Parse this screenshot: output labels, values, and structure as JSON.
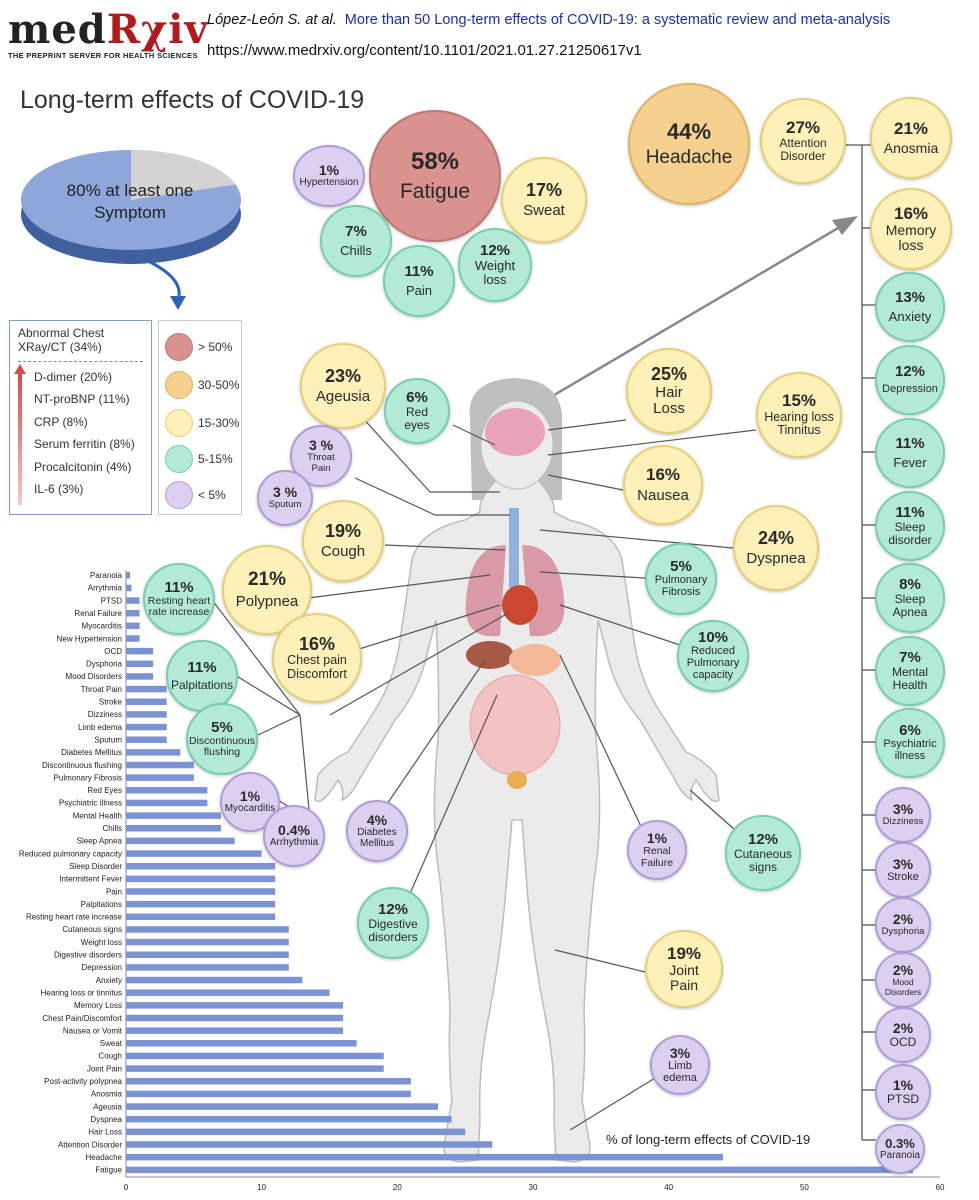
{
  "header": {
    "logo_med": "med",
    "logo_rxiv": "Rχiv",
    "logo_tagline": "THE PREPRINT SERVER FOR HEALTH SCIENCES",
    "author": "López-León S. at al.",
    "paper_title": "More than 50 Long-term effects of COVID-19: a systematic review and meta-analysis",
    "url": "https://www.medrxiv.org/content/10.1101/2021.01.27.21250617v1"
  },
  "main_title": "Long-term effects of COVID-19",
  "pie": {
    "label": "80% at least one Symptom",
    "value": 80
  },
  "biomarkers": {
    "heading": "Abnormal Chest XRay/CT (34%)",
    "items": [
      "D-dimer (20%)",
      "NT-proBNP (11%)",
      "CRP (8%)",
      "Serum ferritin (8%)",
      "Procalcitonin (4%)",
      "IL-6 (3%)"
    ]
  },
  "legend": [
    {
      "label": "> 50%",
      "color": "#d9928e"
    },
    {
      "label": "30-50%",
      "color": "#f5d08e"
    },
    {
      "label": "15-30%",
      "color": "#fdf0b8"
    },
    {
      "label": "5-15%",
      "color": "#b3ead6"
    },
    {
      "label": "< 5%",
      "color": "#dccff0"
    }
  ],
  "bubbles": {
    "fatigue": {
      "pct": "58%",
      "label": "Fatigue"
    },
    "hypertension": {
      "pct": "1%",
      "label": "Hypertension"
    },
    "sweat": {
      "pct": "17%",
      "label": "Sweat"
    },
    "chills": {
      "pct": "7%",
      "label": "Chills"
    },
    "pain": {
      "pct": "11%",
      "label": "Pain"
    },
    "weight_loss": {
      "pct": "12%",
      "label": "Weight loss"
    },
    "headache": {
      "pct": "44%",
      "label": "Headache"
    },
    "attention": {
      "pct": "27%",
      "label": "Attention Disorder"
    },
    "anosmia": {
      "pct": "21%",
      "label": "Anosmia"
    },
    "memory": {
      "pct": "16%",
      "label": "Memory loss"
    },
    "anxiety": {
      "pct": "13%",
      "label": "Anxiety"
    },
    "depression": {
      "pct": "12%",
      "label": "Depression"
    },
    "fever": {
      "pct": "11%",
      "label": "Fever"
    },
    "sleep_disorder": {
      "pct": "11%",
      "label": "Sleep disorder"
    },
    "sleep_apnea": {
      "pct": "8%",
      "label": "Sleep Apnea"
    },
    "mental_health": {
      "pct": "7%",
      "label": "Mental Health"
    },
    "psychiatric": {
      "pct": "6%",
      "label": "Psychiatric illness"
    },
    "dizziness": {
      "pct": "3%",
      "label": "Dizziness"
    },
    "stroke": {
      "pct": "3%",
      "label": "Stroke"
    },
    "dysphoria": {
      "pct": "2%",
      "label": "Dysphoria"
    },
    "mood": {
      "pct": "2%",
      "label": "Mood Disorders"
    },
    "ocd": {
      "pct": "2%",
      "label": "OCD"
    },
    "ptsd": {
      "pct": "1%",
      "label": "PTSD"
    },
    "paranoia": {
      "pct": "0.3%",
      "label": "Paranoia"
    },
    "ageusia": {
      "pct": "23%",
      "label": "Ageusia"
    },
    "red_eyes": {
      "pct": "6%",
      "label": "Red eyes"
    },
    "hair_loss": {
      "pct": "25%",
      "label": "Hair Loss"
    },
    "hearing": {
      "pct": "15%",
      "label": "Hearing loss Tinnitus"
    },
    "throat_pain": {
      "pct": "3 %",
      "label": "Throat Pain"
    },
    "sputum": {
      "pct": "3 %",
      "label": "Sputum"
    },
    "nausea": {
      "pct": "16%",
      "label": "Nausea"
    },
    "cough": {
      "pct": "19%",
      "label": "Cough"
    },
    "dyspnea": {
      "pct": "24%",
      "label": "Dyspnea"
    },
    "polypnea": {
      "pct": "21%",
      "label": "Polypnea"
    },
    "pulm_fibrosis": {
      "pct": "5%",
      "label": "Pulmonary Fibrosis"
    },
    "resting_hr": {
      "pct": "11%",
      "label": "Resting heart rate increase"
    },
    "chest_pain": {
      "pct": "16%",
      "label": "Chest pain Discomfort"
    },
    "reduced_pulm": {
      "pct": "10%",
      "label": "Reduced Pulmonary capacity"
    },
    "palpitations": {
      "pct": "11%",
      "label": "Palpitations"
    },
    "disc_flushing": {
      "pct": "5%",
      "label": "Discontinuous flushing"
    },
    "myocarditis": {
      "pct": "1%",
      "label": "Myocarditis"
    },
    "arrhythmia": {
      "pct": "0.4%",
      "label": "Arrhythmia"
    },
    "diabetes": {
      "pct": "4%",
      "label": "Diabetes Mellitus"
    },
    "renal": {
      "pct": "1%",
      "label": "Renal Failure"
    },
    "cutaneous": {
      "pct": "12%",
      "label": "Cutaneous signs"
    },
    "digestive": {
      "pct": "12%",
      "label": "Digestive disorders"
    },
    "joint_pain": {
      "pct": "19%",
      "label": "Joint Pain"
    },
    "limb_edema": {
      "pct": "3%",
      "label": "Limb edema"
    }
  },
  "chart_data": {
    "type": "bar",
    "orientation": "horizontal",
    "title": "% of long-term effects of COVID-19",
    "xlim": [
      0,
      60
    ],
    "xticks": [
      0,
      10,
      20,
      30,
      40,
      50,
      60
    ],
    "color": "#7b93d4",
    "categories": [
      "Paranoia",
      "Arrythmia",
      "PTSD",
      "Renal Failure",
      "Myocarditis",
      "New Hypertension",
      "OCD",
      "Dysphoria",
      "Mood Disorders",
      "Throat Pain",
      "Stroke",
      "Dizziness",
      "Limb edema",
      "Sputum",
      "Diabetes Mellitus",
      "Discontinuous flushing",
      "Pulmonary Fibrosis",
      "Red Eyes",
      "Psychiatric illness",
      "Mental Health",
      "Chills",
      "Sleep Apnea",
      "Reduced pulmonary capacity",
      "Sleep Disorder",
      "Intermittent Fever",
      "Pain",
      "Palpitations",
      "Resting heart rate increase",
      "Cutaneous signs",
      "Weight loss",
      "Digestive disorders",
      "Depression",
      "Anxiety",
      "Hearing loss or tinnitus",
      "Memory Loss",
      "Chest Pain/Discomfort",
      "Nausea or Vomit",
      "Sweat",
      "Cough",
      "Joint Pain",
      "Post-activity polypnea",
      "Anosmia",
      "Ageusia",
      "Dyspnea",
      "Hair Loss",
      "Attention Disorder",
      "Headache",
      "Fatigue"
    ],
    "values": [
      0.3,
      0.4,
      1,
      1,
      1,
      1,
      2,
      2,
      2,
      3,
      3,
      3,
      3,
      3,
      4,
      5,
      5,
      6,
      6,
      7,
      7,
      8,
      10,
      11,
      11,
      11,
      11,
      11,
      12,
      12,
      12,
      12,
      13,
      15,
      16,
      16,
      16,
      17,
      19,
      19,
      21,
      21,
      23,
      24,
      25,
      27,
      44,
      58
    ]
  }
}
